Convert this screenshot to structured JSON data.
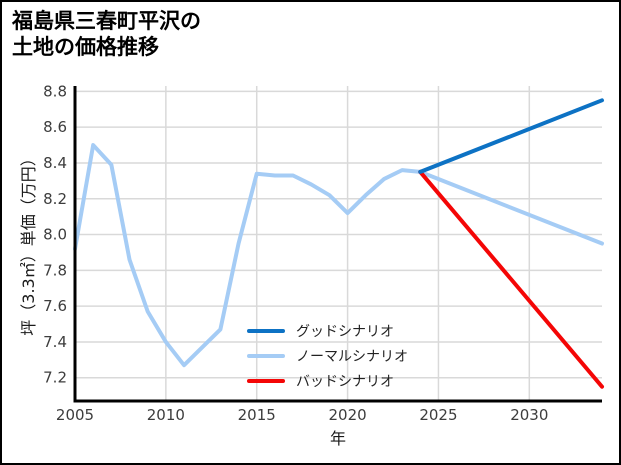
{
  "title": {
    "line1": "福島県三春町平沢の",
    "line2": "土地の価格推移"
  },
  "chart_data": {
    "type": "line",
    "title": "福島県三春町平沢の土地の価格推移",
    "xlabel": "年",
    "ylabel": "坪（3.3㎡）単価（万円）",
    "xlim": [
      2005,
      2034
    ],
    "ylim": [
      7.07,
      8.83
    ],
    "grid": true,
    "legend_position": "inside-bottom-center",
    "x_ticks": [
      "2005",
      "2010",
      "2015",
      "2020",
      "2025",
      "2030"
    ],
    "x_tick_values": [
      2005,
      2010,
      2015,
      2020,
      2025,
      2030
    ],
    "y_ticks": [
      "7.2",
      "7.4",
      "7.6",
      "7.8",
      "8.0",
      "8.2",
      "8.4",
      "8.6",
      "8.8"
    ],
    "y_tick_values": [
      7.2,
      7.4,
      7.6,
      7.8,
      8.0,
      8.2,
      8.4,
      8.6,
      8.8
    ],
    "series": [
      {
        "name": "グッドシナリオ",
        "key": "good-scenario",
        "color": "#0d72c4",
        "x": [
          2024,
          2034
        ],
        "values": [
          8.35,
          8.75
        ]
      },
      {
        "name": "ノーマルシナリオ",
        "key": "normal-scenario",
        "color": "#a5ccf5",
        "x": [
          2005,
          2006,
          2007,
          2008,
          2009,
          2010,
          2011,
          2012,
          2013,
          2014,
          2015,
          2016,
          2017,
          2018,
          2019,
          2020,
          2021,
          2022,
          2023,
          2024,
          2034
        ],
        "values": [
          7.92,
          8.5,
          8.39,
          7.86,
          7.57,
          7.4,
          7.27,
          7.37,
          7.47,
          7.95,
          8.34,
          8.33,
          8.33,
          8.28,
          8.22,
          8.12,
          8.22,
          8.31,
          8.36,
          8.35,
          7.95
        ]
      },
      {
        "name": "バッドシナリオ",
        "key": "bad-scenario",
        "color": "#f40606",
        "x": [
          2024,
          2034
        ],
        "values": [
          8.35,
          7.15
        ]
      }
    ],
    "draw_order": [
      1,
      2,
      0
    ],
    "colors": {
      "grid": "#d9d9d9",
      "axis": "#000000",
      "tick_label": "#3d3d3d",
      "text": "#1a1a1a"
    }
  }
}
